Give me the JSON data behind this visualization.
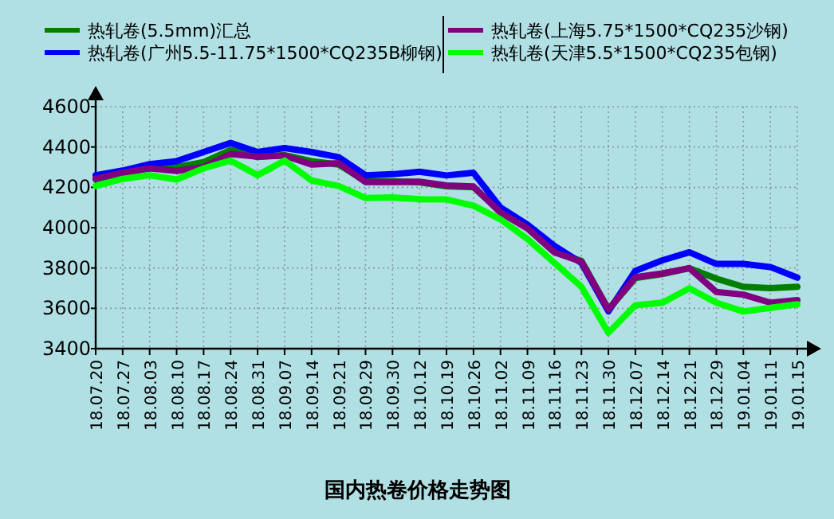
{
  "chart_data": {
    "type": "line",
    "title": "国内热卷价格走势图",
    "categories": [
      "18.07.20",
      "18.07.27",
      "18.08.03",
      "18.08.10",
      "18.08.17",
      "18.08.24",
      "18.08.31",
      "18.09.07",
      "18.09.14",
      "18.09.21",
      "18.09.29",
      "18.09.30",
      "18.10.12",
      "18.10.19",
      "18.10.26",
      "18.11.02",
      "18.11.09",
      "18.11.16",
      "18.11.23",
      "18.11.30",
      "18.12.07",
      "18.12.14",
      "18.12.21",
      "18.12.29",
      "19.01.04",
      "19.01.11",
      "19.01.15"
    ],
    "series": [
      {
        "name": "热轧卷(5.5mm)汇总",
        "color": "#007f00",
        "values": [
          4240,
          4270,
          4295,
          4300,
          4325,
          4385,
          4350,
          4360,
          4330,
          4313,
          4230,
          4230,
          4225,
          4205,
          4200,
          4080,
          4000,
          3880,
          3835,
          3595,
          3750,
          3770,
          3799,
          3747,
          3707,
          3700,
          3707
        ]
      },
      {
        "name": "热轧卷(广州5.5-11.75*1500*CQ235B柳钢)",
        "color": "#0000ff",
        "values": [
          4260,
          4283,
          4315,
          4330,
          4375,
          4420,
          4375,
          4395,
          4375,
          4350,
          4260,
          4265,
          4277,
          4259,
          4272,
          4100,
          4015,
          3910,
          3825,
          3585,
          3786,
          3838,
          3878,
          3820,
          3820,
          3805,
          3752
        ]
      },
      {
        "name": "热轧卷(上海5.75*1500*CQ235沙钢)",
        "color": "#800080",
        "values": [
          4242,
          4273,
          4294,
          4281,
          4300,
          4365,
          4352,
          4357,
          4313,
          4320,
          4226,
          4226,
          4228,
          4209,
          4204,
          4075,
          3996,
          3878,
          3831,
          3594,
          3754,
          3773,
          3799,
          3681,
          3668,
          3628,
          3641
        ]
      },
      {
        "name": "热轧卷(天津5.5*1500*CQ235包钢)",
        "color": "#00ff00",
        "values": [
          4207,
          4242,
          4260,
          4239,
          4294,
          4333,
          4260,
          4333,
          4234,
          4207,
          4147,
          4150,
          4141,
          4140,
          4109,
          4041,
          3944,
          3825,
          3707,
          3479,
          3615,
          3628,
          3699,
          3628,
          3584,
          3602,
          3620
        ]
      }
    ],
    "ylim": [
      3400,
      4600
    ],
    "yticks": [
      3400,
      3600,
      3800,
      4000,
      4200,
      4400,
      4600
    ],
    "grid": true,
    "legend": "top"
  }
}
